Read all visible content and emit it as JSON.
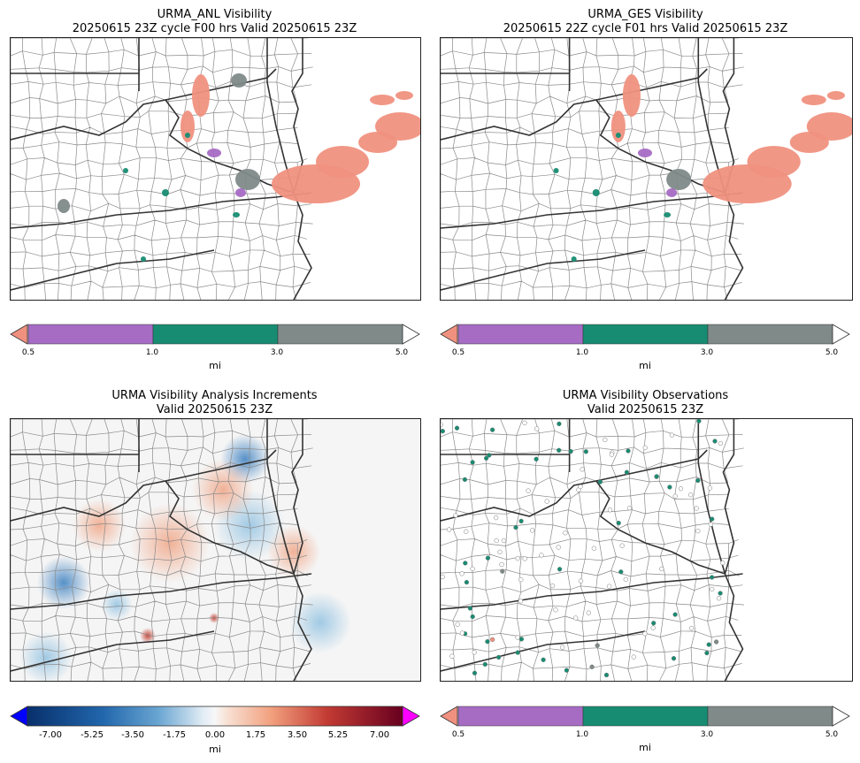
{
  "panels": [
    {
      "id": "anl",
      "title_line1": "URMA_ANL Visibility",
      "title_line2": "20250615 23Z cycle F00 hrs Valid 20250615 23Z"
    },
    {
      "id": "ges",
      "title_line1": "URMA_GES Visibility",
      "title_line2": "20250615 22Z cycle F01 hrs Valid 20250615 23Z"
    },
    {
      "id": "inc",
      "title_line1": "URMA Visibility Analysis Increments",
      "title_line2": "Valid 20250615 23Z"
    },
    {
      "id": "obs",
      "title_line1": "URMA Visibility Observations",
      "title_line2": "Valid 20250615 23Z"
    }
  ],
  "chart_data": [
    {
      "type": "heatmap",
      "title": "URMA_ANL Visibility",
      "subtitle": "20250615 23Z cycle F00 hrs Valid 20250615 23Z",
      "colorbar": {
        "unit": "mi",
        "ticks": [
          "0.5",
          "1.0",
          "3.0",
          "5.0"
        ],
        "bins": [
          {
            "range": "<0.5",
            "color": "#f0917f"
          },
          {
            "range": "0.5-1.0",
            "color": "#a66cc4"
          },
          {
            "range": "1.0-3.0",
            "color": "#178c72"
          },
          {
            "range": "3.0-5.0",
            "color": "#7f8a89"
          },
          {
            "range": ">5.0",
            "color": "#ffffff"
          }
        ]
      }
    },
    {
      "type": "heatmap",
      "title": "URMA_GES Visibility",
      "subtitle": "20250615 22Z cycle F01 hrs Valid 20250615 23Z",
      "colorbar": {
        "unit": "mi",
        "ticks": [
          "0.5",
          "1.0",
          "3.0",
          "5.0"
        ]
      }
    },
    {
      "type": "heatmap",
      "title": "URMA Visibility Analysis Increments",
      "subtitle": "Valid 20250615 23Z",
      "colorbar": {
        "unit": "mi",
        "ticks": [
          "-7.00",
          "-5.25",
          "-3.50",
          "-1.75",
          "0.00",
          "1.75",
          "3.50",
          "5.25",
          "7.00"
        ],
        "range": [
          -8,
          8
        ],
        "under_color": "#0000ff",
        "over_color": "#ff00ff"
      }
    },
    {
      "type": "scatter",
      "title": "URMA Visibility Observations",
      "subtitle": "Valid 20250615 23Z",
      "colorbar": {
        "unit": "mi",
        "ticks": [
          "0.5",
          "1.0",
          "3.0",
          "5.0"
        ]
      }
    }
  ],
  "colors": {
    "lt05": "#f0917f",
    "b05_1": "#a66cc4",
    "b1_3": "#178c72",
    "b3_5": "#7f8a89",
    "gt5": "#ffffff",
    "state_line": "#333333",
    "county_line": "#8a8a8a"
  }
}
